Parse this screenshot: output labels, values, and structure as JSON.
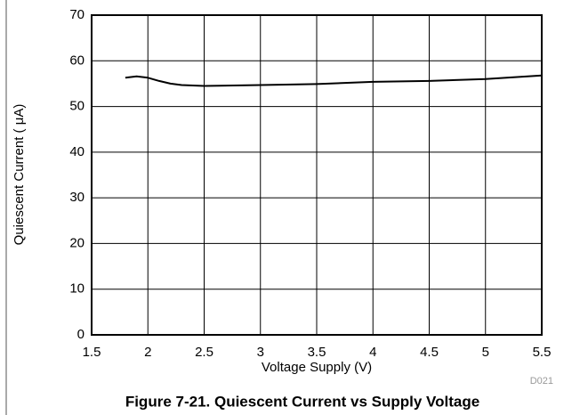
{
  "chart_data": {
    "type": "line",
    "title": "Figure 7-21. Quiescent Current vs Supply Voltage",
    "xlabel": "Voltage Supply (V)",
    "ylabel": "Quiescent Current ( μA)",
    "annotation": "D021",
    "x": [
      1.8,
      1.9,
      2.0,
      2.1,
      2.2,
      2.3,
      2.5,
      3.0,
      3.5,
      4.0,
      4.5,
      5.0,
      5.5
    ],
    "series": [
      {
        "name": "Quiescent Current",
        "color": "#000000",
        "values": [
          56.3,
          56.6,
          56.3,
          55.6,
          55.0,
          54.7,
          54.5,
          54.7,
          54.9,
          55.4,
          55.6,
          56.0,
          56.8
        ]
      }
    ],
    "xlim": [
      1.5,
      5.5
    ],
    "xticks": [
      1.5,
      2,
      2.5,
      3,
      3.5,
      4,
      4.5,
      5,
      5.5
    ],
    "ylim": [
      0,
      70
    ],
    "yticks": [
      0,
      10,
      20,
      30,
      40,
      50,
      60,
      70
    ],
    "grid": true
  }
}
